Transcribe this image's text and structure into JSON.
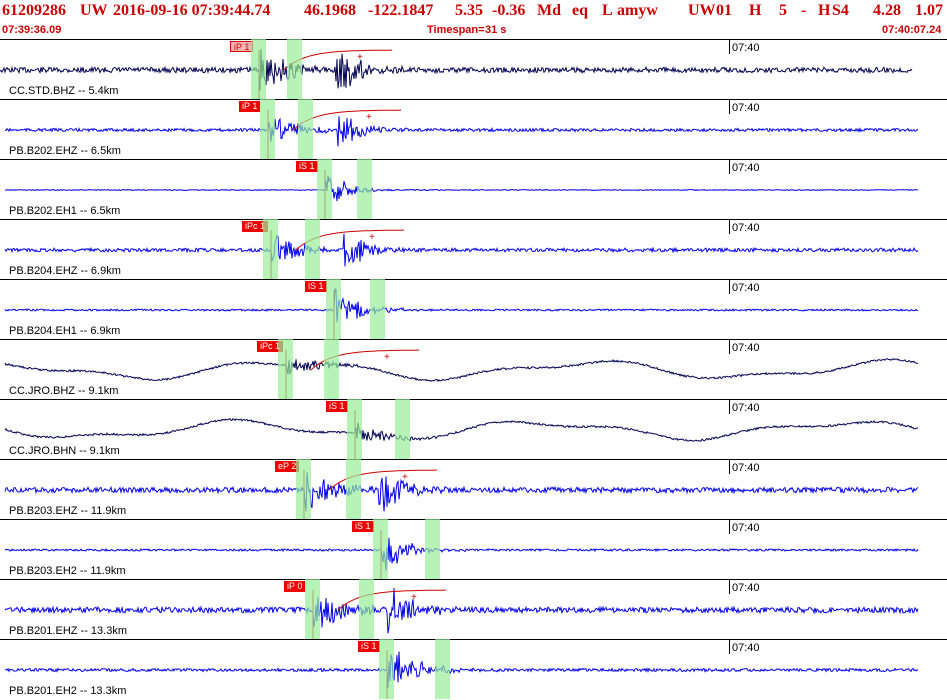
{
  "header": {
    "event_id": "61209286",
    "network": "UW",
    "origin_time": "2016-09-16 07:39:44.74",
    "latitude": "46.1968",
    "longitude": "-122.1847",
    "depth": "5.35",
    "magnitude": "-0.36",
    "mag_type": "Md",
    "event_type": "eq",
    "location_flag": "L",
    "author": "amyw",
    "source": "UW",
    "version": "01",
    "gtype": "H",
    "picks": "5",
    "dash": "-",
    "quality": "H",
    "solution": "S4",
    "rms": "4.28",
    "err": "1.07"
  },
  "timebar": {
    "start_time": "07:39:36.09",
    "timespan_label": "Timespan=",
    "timespan_value": "31 s",
    "end_time": "07:40:07.24"
  },
  "colors": {
    "header_text": "#cc0000",
    "trace_primary": "#0000ee",
    "trace_secondary": "#000055",
    "pick_box": "#ee0000",
    "pick_window": "#99ee99",
    "coda": "#cc0000"
  },
  "traces": [
    {
      "label": "CC.STD.BHZ -- 5.4km",
      "time_tick": "07:40",
      "pick": "iP 1",
      "pick_style": "outlined",
      "color_key": "trace_secondary",
      "amp": 0.9,
      "arrival_s": 8.7,
      "s_s": 11.2
    },
    {
      "label": "PB.B202.EHZ -- 6.5km",
      "time_tick": "07:40",
      "pick": "iP 1",
      "pick_style": "solid",
      "color_key": "trace_primary",
      "amp": 0.5,
      "arrival_s": 9.0,
      "s_s": 11.3
    },
    {
      "label": "PB.B202.EH1 -- 6.5km",
      "time_tick": "07:40",
      "pick": "iS 1",
      "pick_style": "solid",
      "color_key": "trace_primary",
      "amp": 0.15,
      "arrival_s": 10.9,
      "s_s": 10.9
    },
    {
      "label": "PB.B204.EHZ -- 6.9km",
      "time_tick": "07:40",
      "pick": "iPc 1",
      "pick_style": "solid",
      "color_key": "trace_primary",
      "amp": 0.6,
      "arrival_s": 9.1,
      "s_s": 11.5
    },
    {
      "label": "PB.B204.EH1 -- 6.9km",
      "time_tick": "07:40",
      "pick": "iS 1",
      "pick_style": "solid",
      "color_key": "trace_primary",
      "amp": 0.3,
      "arrival_s": 11.2,
      "s_s": 11.2
    },
    {
      "label": "CC.JRO.BHZ -- 9.1km",
      "time_tick": "07:40",
      "pick": "iPc 1",
      "pick_style": "solid",
      "color_key": "trace_secondary",
      "amp": 0.5,
      "arrival_s": 9.6,
      "s_s": 12.6
    },
    {
      "label": "CC.JRO.BHN -- 9.1km",
      "time_tick": "07:40",
      "pick": "iS 1",
      "pick_style": "solid",
      "color_key": "trace_secondary",
      "amp": 0.5,
      "arrival_s": 11.9,
      "s_s": 11.9
    },
    {
      "label": "PB.B203.EHZ -- 11.9km",
      "time_tick": "07:40",
      "pick": "eP 2",
      "pick_style": "solid",
      "color_key": "trace_primary",
      "amp": 0.9,
      "arrival_s": 10.2,
      "s_s": 12.7
    },
    {
      "label": "PB.B203.EH2 -- 11.9km",
      "time_tick": "07:40",
      "pick": "iS 1",
      "pick_style": "solid",
      "color_key": "trace_primary",
      "amp": 0.35,
      "arrival_s": 12.8,
      "s_s": 12.8
    },
    {
      "label": "PB.B201.EHZ -- 13.3km",
      "time_tick": "07:40",
      "pick": "iP 0",
      "pick_style": "solid",
      "color_key": "trace_primary",
      "amp": 0.95,
      "arrival_s": 10.5,
      "s_s": 13.0
    },
    {
      "label": "PB.B201.EH2 -- 13.3km",
      "time_tick": "07:40",
      "pick": "iS 1",
      "pick_style": "solid",
      "color_key": "trace_primary",
      "amp": 0.5,
      "arrival_s": 13.0,
      "s_s": 13.0
    }
  ]
}
